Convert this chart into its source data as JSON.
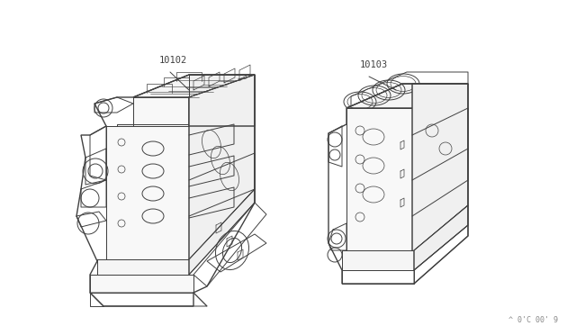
{
  "background_color": "#ffffff",
  "fig_width": 6.4,
  "fig_height": 3.72,
  "dpi": 100,
  "label1": "10102",
  "label2": "10103",
  "watermark": "^ 0'C 00' 9",
  "line_color": "#404040",
  "line_width": 0.7,
  "font_size_labels": 7.5,
  "font_size_watermark": 6
}
